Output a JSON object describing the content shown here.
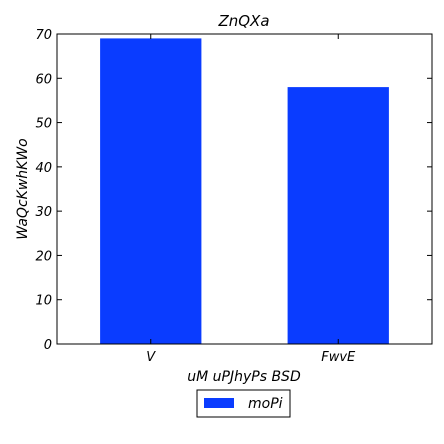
{
  "chart_data": {
    "type": "bar",
    "title": "ZnQXa",
    "xlabel": "uM uPJhyPs BSD",
    "ylabel": "WaQcKwhKWo",
    "categories": [
      "V",
      "FwvE"
    ],
    "series": [
      {
        "name": "moPi",
        "values": [
          69,
          58
        ],
        "color": "#0a3cff"
      }
    ],
    "ylim": [
      0,
      70
    ],
    "yticks": [
      "0",
      "10",
      "20",
      "30",
      "40",
      "50",
      "60",
      "70"
    ],
    "grid": false,
    "legend": "bottom-center"
  }
}
